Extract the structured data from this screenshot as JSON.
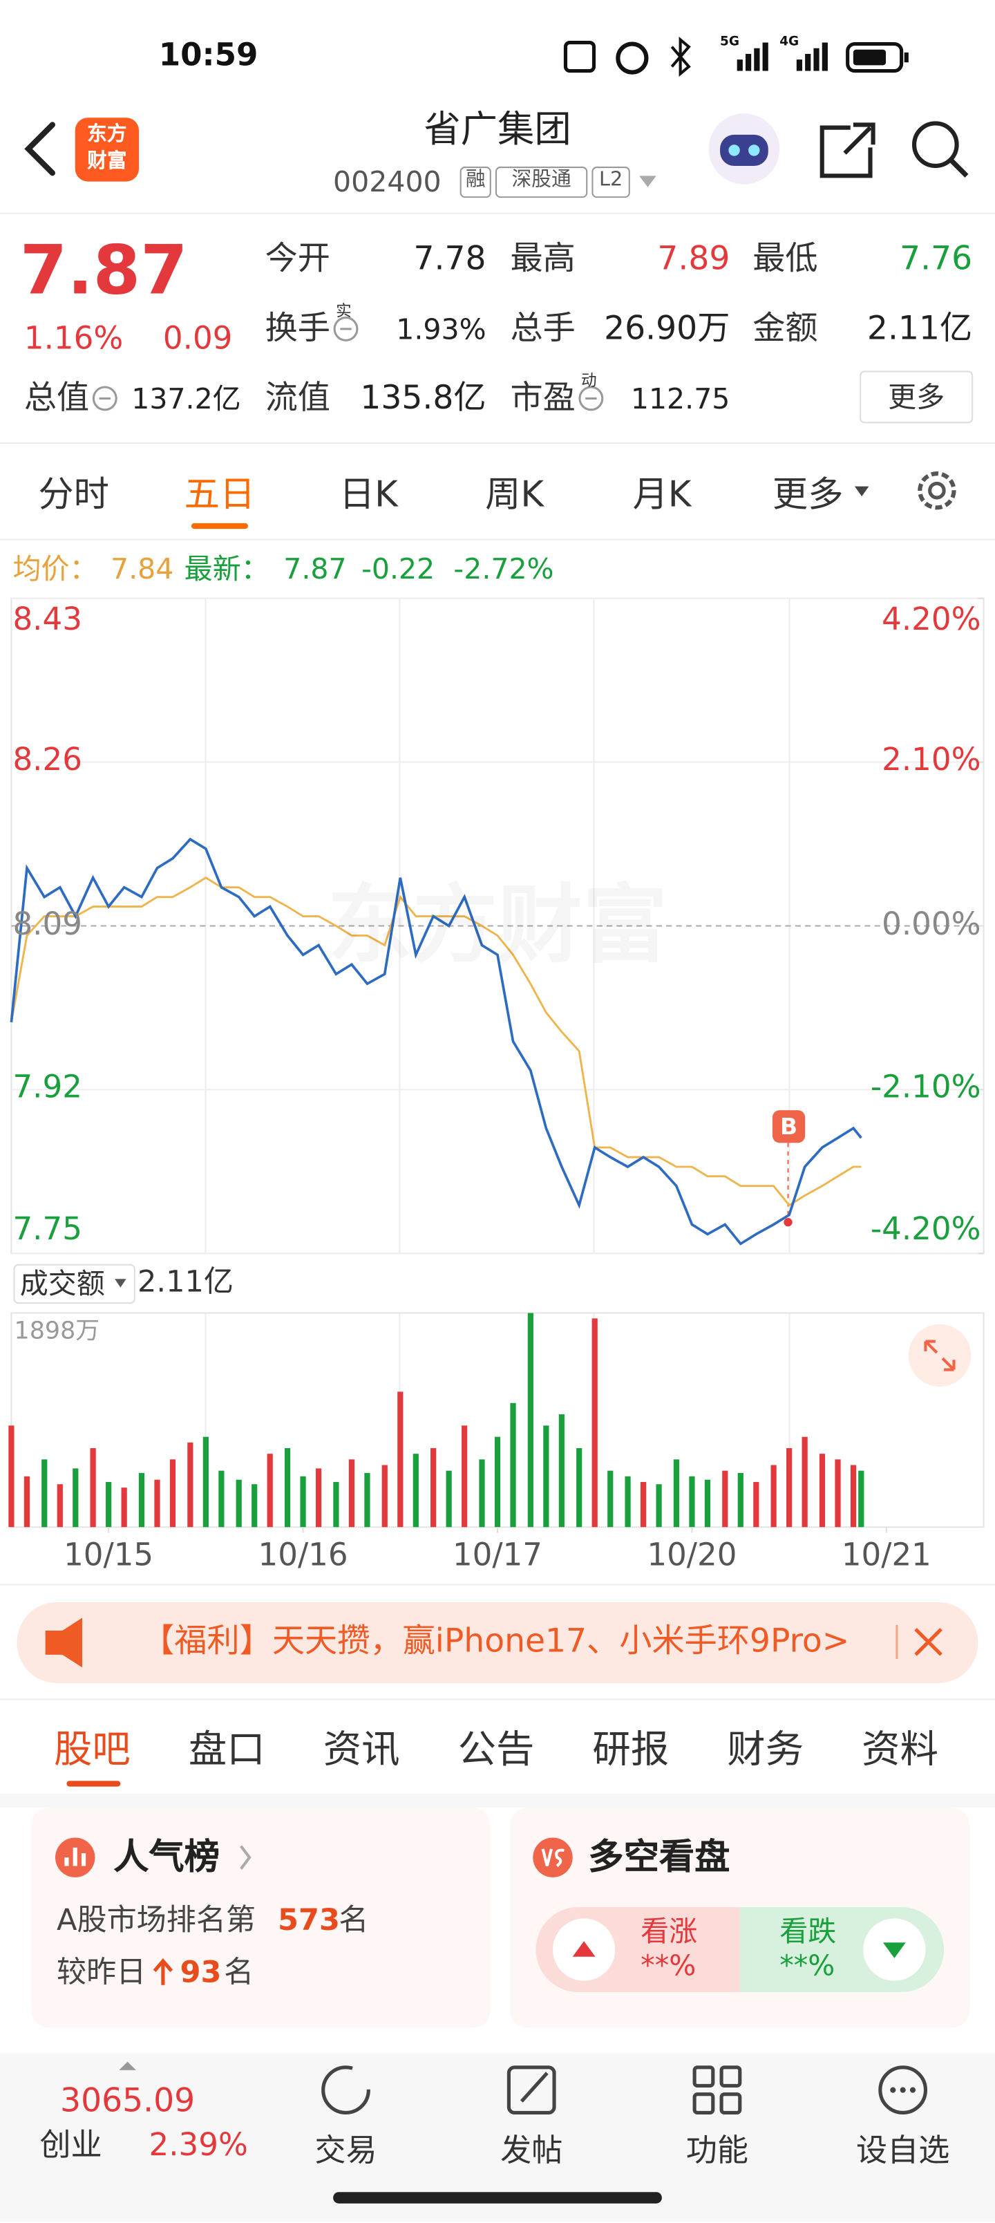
{
  "status_bar": {
    "time": "10:59",
    "network": [
      "5G",
      "4G"
    ]
  },
  "header": {
    "logo": [
      "东方",
      "财富"
    ],
    "title": "省广集团",
    "code": "002400",
    "tags": [
      "融",
      "深股通",
      "L2"
    ]
  },
  "quote": {
    "price": "7.87",
    "change_pct": "1.16%",
    "change": "0.09",
    "stats": [
      {
        "label": "今开",
        "value": "7.78"
      },
      {
        "label": "最高",
        "value": "7.89"
      },
      {
        "label": "最低",
        "value": "7.76"
      },
      {
        "label": "换手",
        "sup": "实",
        "value": "1.93%"
      },
      {
        "label": "总手",
        "value": "26.90万"
      },
      {
        "label": "金额",
        "value": "2.11亿"
      },
      {
        "label": "总值",
        "value": "137.2亿"
      },
      {
        "label": "流值",
        "value": "135.8亿"
      },
      {
        "label": "市盈",
        "sup": "动",
        "value": "112.75"
      }
    ],
    "more": "更多"
  },
  "tabs": [
    "分时",
    "五日",
    "日K",
    "周K",
    "月K",
    "更多"
  ],
  "chart_info": {
    "avg_label": "均价：",
    "avg": "7.84",
    "latest_label": "最新：",
    "latest": "7.87",
    "change": "-0.22",
    "change_pct": "-2.72%"
  },
  "watermark": "东方财富",
  "marker": "B",
  "chart_data": [
    {
      "type": "line",
      "x": [
        0,
        0.08,
        0.17,
        0.25,
        0.33,
        0.42,
        0.5,
        0.58,
        0.67,
        0.75,
        0.83,
        0.92,
        1,
        1.08,
        1.17,
        1.25,
        1.33,
        1.42,
        1.5,
        1.58,
        1.67,
        1.75,
        1.83,
        1.92,
        2,
        2.08,
        2.17,
        2.25,
        2.33,
        2.42,
        2.5,
        2.58,
        2.67,
        2.75,
        2.83,
        2.92,
        3,
        3.08,
        3.17,
        3.25,
        3.33,
        3.42,
        3.5,
        3.58,
        3.67,
        3.75,
        3.83,
        3.92,
        4,
        4.08,
        4.17,
        4.25,
        4.33,
        4.37
      ],
      "series": [
        {
          "color": "#2d6cc0",
          "values": [
            7.99,
            8.15,
            8.12,
            8.13,
            8.1,
            8.14,
            8.11,
            8.13,
            8.12,
            8.15,
            8.16,
            8.18,
            8.17,
            8.13,
            8.12,
            8.1,
            8.11,
            8.08,
            8.06,
            8.07,
            8.04,
            8.05,
            8.03,
            8.04,
            8.14,
            8.06,
            8.1,
            8.09,
            8.12,
            8.07,
            8.06,
            7.97,
            7.94,
            7.88,
            7.84,
            7.8,
            7.86,
            7.85,
            7.84,
            7.85,
            7.84,
            7.82,
            7.78,
            7.77,
            7.78,
            7.76,
            7.77,
            7.78,
            7.79,
            7.84,
            7.86,
            7.87,
            7.88,
            7.87
          ]
        },
        {
          "color": "#f0b44c",
          "values": [
            7.99,
            8.08,
            8.1,
            8.1,
            8.1,
            8.11,
            8.11,
            8.11,
            8.11,
            8.12,
            8.12,
            8.13,
            8.14,
            8.13,
            8.13,
            8.12,
            8.12,
            8.11,
            8.1,
            8.1,
            8.09,
            8.08,
            8.08,
            8.07,
            8.12,
            8.1,
            8.1,
            8.1,
            8.1,
            8.09,
            8.08,
            8.06,
            8.03,
            8.0,
            7.98,
            7.96,
            7.86,
            7.86,
            7.85,
            7.85,
            7.85,
            7.84,
            7.84,
            7.83,
            7.83,
            7.82,
            7.82,
            7.82,
            7.8,
            7.81,
            7.82,
            7.83,
            7.84,
            7.84
          ]
        }
      ],
      "xlim": [
        0,
        5
      ],
      "xticks": [
        {
          "value": 0.5,
          "label": "10/15"
        },
        {
          "value": 1.5,
          "label": "10/16"
        },
        {
          "value": 2.5,
          "label": "10/17"
        },
        {
          "value": 3.5,
          "label": "10/20"
        },
        {
          "value": 4.5,
          "label": "10/21"
        }
      ],
      "ylim": [
        7.75,
        8.43
      ],
      "yticks": [
        8.43,
        8.26,
        8.09,
        7.92,
        7.75
      ],
      "y2lim": [
        -4.2,
        4.2
      ],
      "y2ticks": [
        {
          "value": 4.2,
          "label": "4.20%"
        },
        {
          "value": 2.1,
          "label": "2.10%"
        },
        {
          "value": 0,
          "label": "0.00%"
        },
        {
          "value": -2.1,
          "label": "-2.10%"
        },
        {
          "value": -4.2,
          "label": "-4.20%"
        }
      ],
      "grid": true
    },
    {
      "type": "bar",
      "title": "成交额",
      "subtitle": "2.11亿",
      "x": [
        0,
        0.08,
        0.17,
        0.25,
        0.33,
        0.42,
        0.5,
        0.58,
        0.67,
        0.75,
        0.83,
        0.92,
        1,
        1.08,
        1.17,
        1.25,
        1.33,
        1.42,
        1.5,
        1.58,
        1.67,
        1.75,
        1.83,
        1.92,
        2,
        2.08,
        2.17,
        2.25,
        2.33,
        2.42,
        2.5,
        2.58,
        2.67,
        2.75,
        2.83,
        2.92,
        3,
        3.08,
        3.17,
        3.25,
        3.33,
        3.42,
        3.5,
        3.58,
        3.67,
        3.75,
        3.83,
        3.92,
        4,
        4.08,
        4.17,
        4.25,
        4.33,
        4.37
      ],
      "values": [
        900,
        450,
        600,
        380,
        520,
        700,
        400,
        350,
        480,
        420,
        600,
        750,
        800,
        500,
        420,
        380,
        650,
        700,
        450,
        520,
        400,
        600,
        480,
        550,
        1200,
        650,
        700,
        500,
        900,
        600,
        800,
        1100,
        1898,
        900,
        1000,
        700,
        1850,
        500,
        450,
        400,
        380,
        600,
        450,
        420,
        500,
        480,
        400,
        550,
        700,
        800,
        650,
        600,
        550,
        500
      ],
      "colors": [
        "#e4393c",
        "#19a03c"
      ],
      "xlim": [
        0,
        5
      ],
      "ylim": [
        0,
        1898
      ],
      "yticks": [
        {
          "value": 1898,
          "label": "1898万"
        }
      ]
    }
  ],
  "banner": "【福利】天天攒，赢iPhone17、小米手环9Pro>",
  "sections": [
    "股吧",
    "盘口",
    "资讯",
    "公告",
    "研报",
    "财务",
    "资料"
  ],
  "cards": {
    "popularity": {
      "title": "人气榜",
      "rank_prefix": "A股市场排名第",
      "rank": "573",
      "rank_suffix": "名",
      "delta_prefix": "较昨日",
      "delta": "93",
      "delta_suffix": "名"
    },
    "sentiment": {
      "title": "多空看盘",
      "up_label": "看涨",
      "up_value": "**%",
      "down_label": "看跌",
      "down_value": "**%"
    }
  },
  "index": {
    "value": "3065.09",
    "name": "创业",
    "change_pct": "2.39%"
  },
  "nav": [
    "交易",
    "发帖",
    "功能",
    "设自选"
  ]
}
